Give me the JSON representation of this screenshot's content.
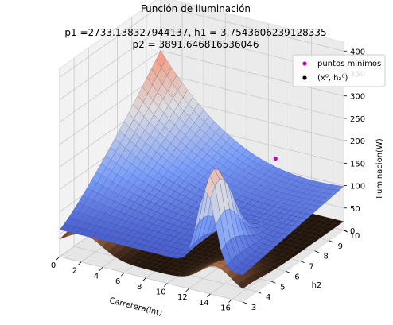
{
  "chart_data": {
    "type": "surface3d",
    "title": "Función de iluminación",
    "subtitle_line1": "p1 =2733.138327944137, h1 = 3.7543606239128335",
    "subtitle_line2": "p2 = 3891.646816536046",
    "xlabel": "Carretera(int)",
    "ylabel": "h2",
    "zlabel": "Iluminacion(W)",
    "xlim": [
      0,
      17
    ],
    "ylim": [
      3,
      10
    ],
    "zlim": [
      0,
      420
    ],
    "x_ticks": [
      0,
      2,
      4,
      6,
      8,
      10,
      12,
      14,
      16
    ],
    "y_ticks": [
      3,
      4,
      5,
      6,
      7,
      8,
      9,
      10
    ],
    "z_ticks": [
      0,
      50,
      100,
      150,
      200,
      250,
      300,
      350,
      400
    ],
    "legend": {
      "placement": "upper-right",
      "entries": [
        {
          "label": "puntos mínimos",
          "color": "#bf00bf",
          "marker": "dot"
        },
        {
          "label": "(x⁰, h₂⁰)",
          "color": "#000000",
          "marker": "dot"
        }
      ]
    },
    "series": [
      {
        "name": "",
        "kind": "surface",
        "colormap": "coolwarm"
      },
      {
        "name": "",
        "kind": "surface",
        "colormap": "copper"
      }
    ],
    "min_point": {
      "x": 11.2,
      "y": 9.6,
      "z": 135
    }
  }
}
